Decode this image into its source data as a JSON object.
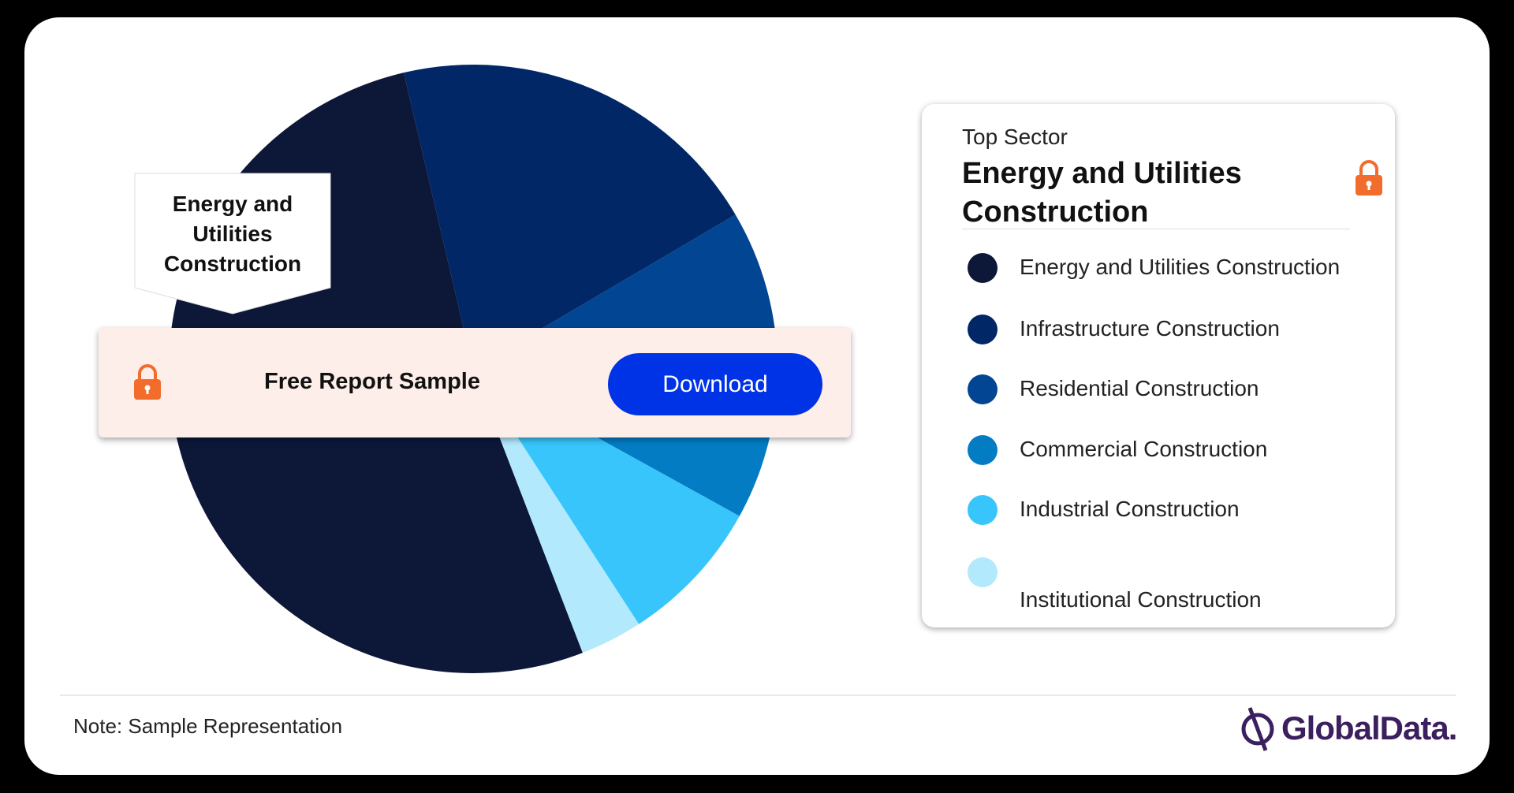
{
  "chart_data": {
    "type": "pie",
    "categories": [
      "Energy and Utilities Construction",
      "Infrastructure Construction",
      "Residential Construction",
      "Commercial Construction",
      "Industrial Construction",
      "Institutional Construction"
    ],
    "values": [
      52.2,
      20.2,
      8.4,
      8.1,
      7.8,
      3.3
    ],
    "colors": [
      "#0d1738",
      "#012766",
      "#024592",
      "#047cc4",
      "#38c5fb",
      "#b3e9fd"
    ],
    "callout": "Energy and Utilities Construction"
  },
  "banner": {
    "text": "Free Report Sample",
    "button": "Download"
  },
  "top_sector": {
    "label": "Top Sector",
    "value": "Energy and Utilities Construction"
  },
  "note": "Note: Sample Representation",
  "logo": "GlobalData."
}
